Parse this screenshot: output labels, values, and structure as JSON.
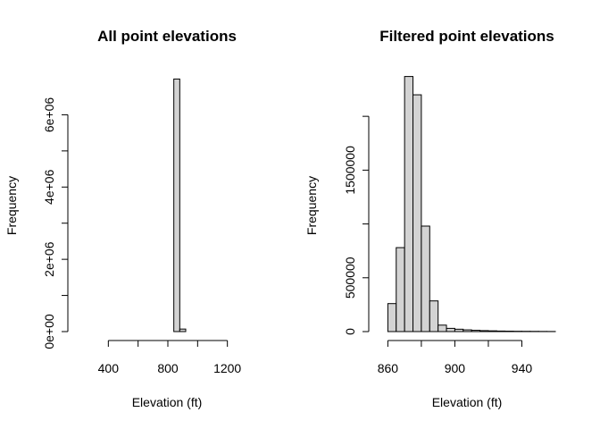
{
  "chart_data": [
    {
      "type": "bar",
      "subtype": "histogram",
      "title": "All point elevations",
      "xlabel": "Elevation (ft)",
      "ylabel": "Frequency",
      "xlim": [
        200,
        1400
      ],
      "ylim": [
        0,
        7000000
      ],
      "x_ticks": [
        400,
        800,
        1200
      ],
      "x_tick_labels": [
        "400",
        "800",
        "1200"
      ],
      "y_ticks": [
        0,
        2000000,
        4000000,
        6000000
      ],
      "y_tick_labels": [
        "0e+00",
        "2e+06",
        "4e+06",
        "6e+06"
      ],
      "bin_edges": [
        240,
        280,
        320,
        360,
        400,
        440,
        480,
        520,
        560,
        600,
        640,
        680,
        720,
        760,
        800,
        840,
        880,
        920,
        960,
        1000,
        1040,
        1080,
        1120,
        1160,
        1200,
        1240,
        1280,
        1320,
        1360,
        1400
      ],
      "values": [
        0,
        0,
        0,
        0,
        0,
        0,
        0,
        0,
        0,
        0,
        0,
        0,
        0,
        0,
        0,
        6990000,
        70000,
        0,
        0,
        0,
        0,
        0,
        0,
        0,
        0,
        0,
        0,
        0,
        0
      ],
      "grid": false,
      "color": "#d3d3d3"
    },
    {
      "type": "bar",
      "subtype": "histogram",
      "title": "Filtered point elevations",
      "xlabel": "Elevation (ft)",
      "ylabel": "Frequency",
      "xlim": [
        855,
        960
      ],
      "ylim": [
        0,
        2350000
      ],
      "x_ticks": [
        860,
        900,
        940
      ],
      "x_tick_labels": [
        "860",
        "900",
        "940"
      ],
      "y_ticks": [
        0,
        500000,
        1000000,
        1500000,
        2000000
      ],
      "y_tick_labels": [
        "0",
        "500000",
        "",
        "1500000",
        ""
      ],
      "bin_edges": [
        860,
        865,
        870,
        875,
        880,
        885,
        890,
        895,
        900,
        905,
        910,
        915,
        920,
        925,
        930,
        935,
        940,
        945,
        950,
        955,
        960
      ],
      "values": [
        260000,
        780000,
        2370000,
        2200000,
        980000,
        285000,
        60000,
        30000,
        22000,
        16000,
        12000,
        9000,
        7000,
        5000,
        4000,
        3000,
        2500,
        2000,
        1500,
        1000
      ],
      "grid": false,
      "color": "#d3d3d3"
    }
  ]
}
